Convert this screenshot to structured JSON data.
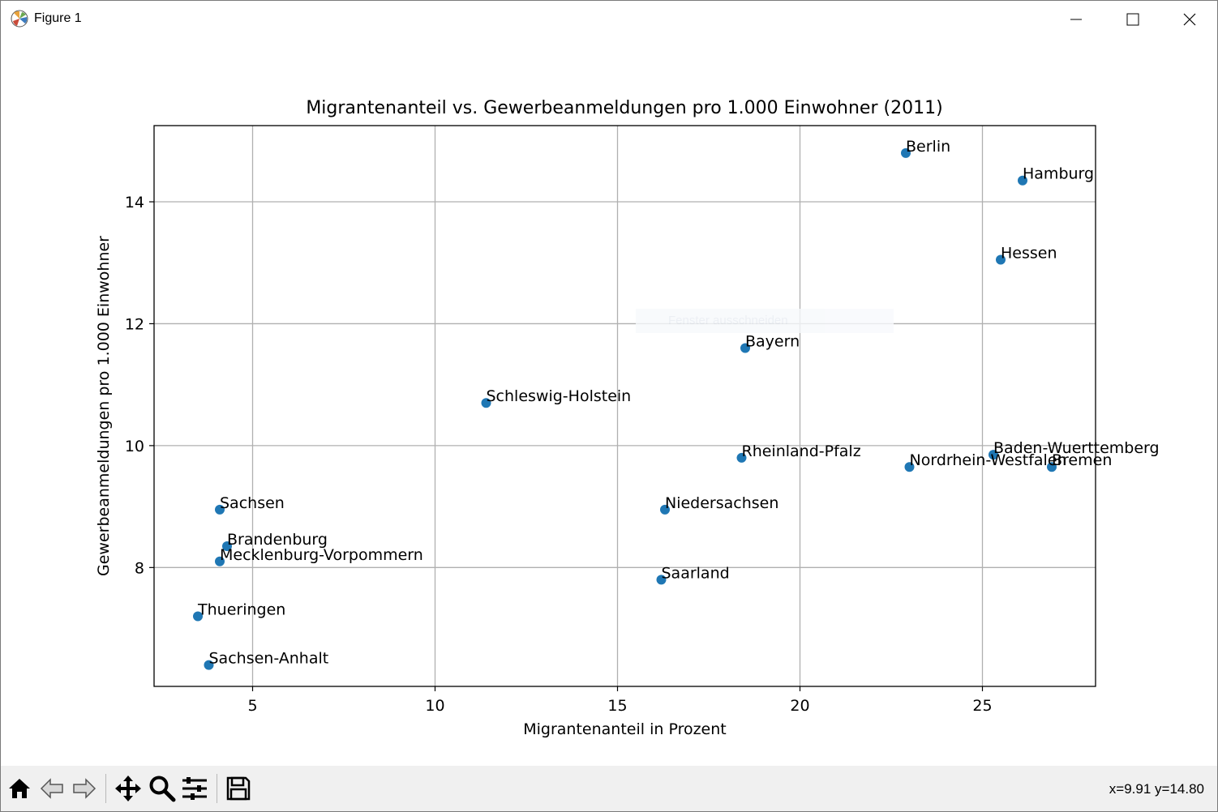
{
  "window": {
    "title": "Figure 1",
    "icon": "matplotlib-icon",
    "controls": [
      "minimize-icon",
      "maximize-icon",
      "close-icon"
    ]
  },
  "overlay": {
    "text": "Fenster ausschneiden"
  },
  "toolbar": {
    "buttons": [
      "home-icon",
      "back-icon",
      "forward-icon",
      "pan-icon",
      "zoom-icon",
      "configure-subplots-icon",
      "save-icon"
    ],
    "coords": "x=9.91 y=14.80"
  },
  "colors": {
    "marker": "#1f77b4",
    "grid": "#b0b0b0"
  },
  "chart_data": {
    "type": "scatter",
    "title": "Migrantenanteil vs. Gewerbeanmeldungen pro 1.000 Einwohner (2011)",
    "xlabel": "Migrantenanteil in Prozent",
    "ylabel": "Gewerbeanmeldungen pro 1.000 Einwohner",
    "xlim": [
      2.3,
      28.1
    ],
    "ylim": [
      6.05,
      15.25
    ],
    "xticks": [
      5,
      10,
      15,
      20,
      25
    ],
    "yticks": [
      8,
      10,
      12,
      14
    ],
    "grid": true,
    "points": [
      {
        "label": "Berlin",
        "x": 22.9,
        "y": 14.8
      },
      {
        "label": "Hamburg",
        "x": 26.1,
        "y": 14.35
      },
      {
        "label": "Hessen",
        "x": 25.5,
        "y": 13.05
      },
      {
        "label": "Bayern",
        "x": 18.5,
        "y": 11.6
      },
      {
        "label": "Schleswig-Holstein",
        "x": 11.4,
        "y": 10.7
      },
      {
        "label": "Rheinland-Pfalz",
        "x": 18.4,
        "y": 9.8
      },
      {
        "label": "Baden-Wuerttemberg",
        "x": 25.3,
        "y": 9.85
      },
      {
        "label": "Nordrhein-Westfalen",
        "x": 23.0,
        "y": 9.65
      },
      {
        "label": "Bremen",
        "x": 26.9,
        "y": 9.65
      },
      {
        "label": "Niedersachsen",
        "x": 16.3,
        "y": 8.95
      },
      {
        "label": "Sachsen",
        "x": 4.1,
        "y": 8.95
      },
      {
        "label": "Brandenburg",
        "x": 4.3,
        "y": 8.35
      },
      {
        "label": "Mecklenburg-Vorpommern",
        "x": 4.1,
        "y": 8.1
      },
      {
        "label": "Saarland",
        "x": 16.2,
        "y": 7.8
      },
      {
        "label": "Thueringen",
        "x": 3.5,
        "y": 7.2
      },
      {
        "label": "Sachsen-Anhalt",
        "x": 3.8,
        "y": 6.4
      }
    ]
  }
}
